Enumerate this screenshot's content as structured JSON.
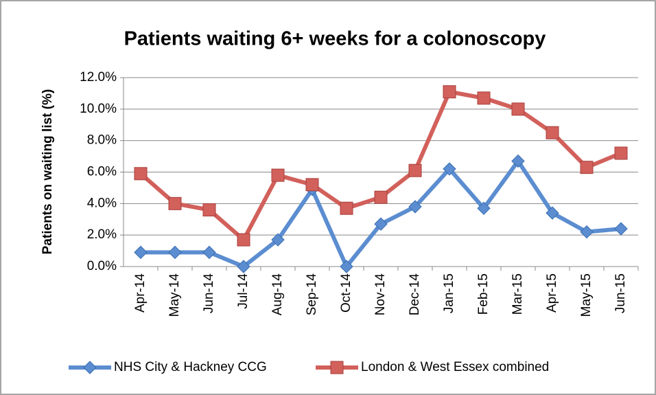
{
  "chart_data": {
    "type": "line",
    "title": "Patients waiting 6+ weeks for a colonoscopy",
    "y_label": "Patients on waiting list (%)",
    "categories": [
      "Apr-14",
      "May-14",
      "Jun-14",
      "Jul-14",
      "Aug-14",
      "Sep-14",
      "Oct-14",
      "Nov-14",
      "Dec-14",
      "Jan-15",
      "Feb-15",
      "Mar-15",
      "Apr-15",
      "May-15",
      "Jun-15"
    ],
    "series": [
      {
        "name": "NHS City & Hackney CCG",
        "color": "#5b8dd0",
        "marker": "diamond",
        "values": [
          0.9,
          0.9,
          0.9,
          0.0,
          1.7,
          4.9,
          0.0,
          2.7,
          3.8,
          6.2,
          3.7,
          6.7,
          3.4,
          2.2,
          2.4
        ]
      },
      {
        "name": "London & West Essex combined",
        "color": "#d2605b",
        "marker": "square",
        "values": [
          5.9,
          4.0,
          3.6,
          1.7,
          5.8,
          5.2,
          3.7,
          4.4,
          6.1,
          11.1,
          10.7,
          10.0,
          8.5,
          6.3,
          7.2
        ]
      }
    ],
    "ylim": [
      0,
      12
    ],
    "yticks": [
      {
        "value": 0,
        "label": "0.0%"
      },
      {
        "value": 2,
        "label": "2.0%"
      },
      {
        "value": 4,
        "label": "4.0%"
      },
      {
        "value": 6,
        "label": "6.0%"
      },
      {
        "value": 8,
        "label": "8.0%"
      },
      {
        "value": 10,
        "label": "10.0%"
      },
      {
        "value": 12,
        "label": "12.0%"
      }
    ],
    "grid": true,
    "legend": "bottom"
  }
}
